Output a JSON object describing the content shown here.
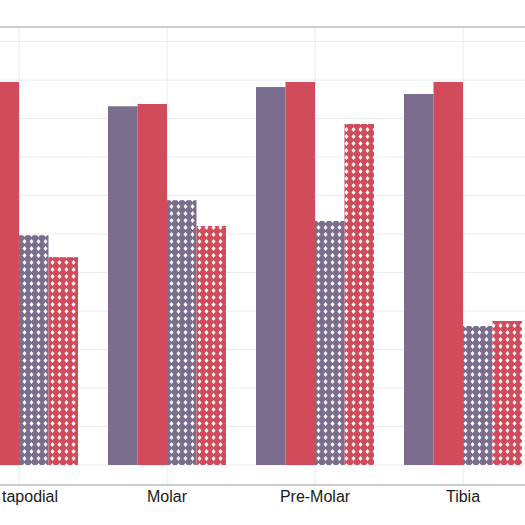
{
  "chart_data": {
    "type": "bar",
    "categories": [
      "tapodial",
      "Molar",
      "Pre-Molar",
      "Tibia"
    ],
    "series": [
      {
        "color": "#7b6d8d",
        "line_style": "solid",
        "values": [
          null,
          9.32,
          9.82,
          9.64
        ]
      },
      {
        "color": "#d14b5a",
        "line_style": "solid",
        "values": [
          9.95,
          9.38,
          9.95,
          9.95
        ]
      },
      {
        "color": "#7b6d8d",
        "line_style": "dotted",
        "values": [
          5.97,
          6.88,
          6.34,
          3.61
        ]
      },
      {
        "color": "#d14b5a",
        "line_style": "dotted",
        "values": [
          5.4,
          6.21,
          8.86,
          3.74
        ]
      }
    ],
    "ylim": [
      -0.52,
      11.38
    ],
    "yticks": [
      0,
      1,
      2,
      3,
      4,
      5,
      6,
      7,
      8,
      9,
      10,
      11
    ],
    "grid": true,
    "tick_labels": "x"
  }
}
